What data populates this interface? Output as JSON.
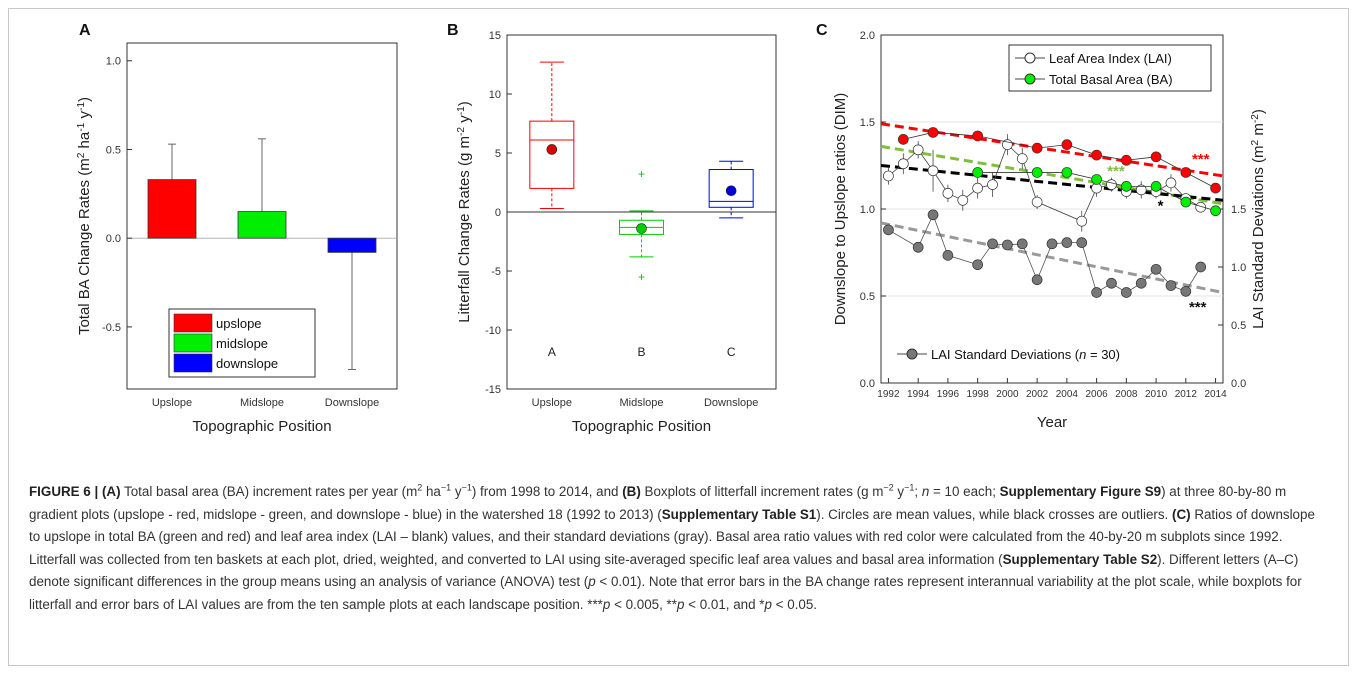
{
  "panels": {
    "A": {
      "letter": "A"
    },
    "B": {
      "letter": "B"
    },
    "C": {
      "letter": "C"
    }
  },
  "chart_data": [
    {
      "type": "bar",
      "panel": "A",
      "ylabel_main": "Total BA Change Rates (m",
      "ylabel_unit_a": "2",
      "ylabel_mid": " ha",
      "ylabel_unit_b": "-1",
      "ylabel_mid2": " y",
      "ylabel_unit_c": "-1",
      "ylabel_end": ")",
      "xlabel": "Topographic Position",
      "categories": [
        "Upslope",
        "Midslope",
        "Downslope"
      ],
      "values": [
        0.33,
        0.15,
        -0.08
      ],
      "error_bars": [
        0.53,
        0.56,
        -0.74
      ],
      "colors": [
        "#ff0000",
        "#00ee00",
        "#0000ff"
      ],
      "ylim": [
        -0.85,
        1.1
      ],
      "yticks": [
        -0.5,
        0.0,
        0.5,
        1.0
      ],
      "ytick_labels": [
        "-0.5",
        "0.0",
        "0.5",
        "1.0"
      ],
      "legend": [
        "upslope",
        "midslope",
        "downslope"
      ],
      "legend_position": "bottom-left"
    },
    {
      "type": "box",
      "panel": "B",
      "ylabel_main": "Litterfall Change Rates (g m",
      "ylabel_unit_a": "-2",
      "ylabel_mid": " y",
      "ylabel_unit_b": "-1",
      "ylabel_end": ")",
      "xlabel": "Topographic Position",
      "categories": [
        "Upslope",
        "Midslope",
        "Downslope"
      ],
      "group_letters": [
        "A",
        "B",
        "C"
      ],
      "colors": [
        "#ff0000",
        "#00cc00",
        "#0000ff"
      ],
      "boxes": [
        {
          "whisker_low": 0.3,
          "q1": 2.0,
          "median": 6.1,
          "q3": 7.7,
          "whisker_high": 12.7,
          "mean": 5.3,
          "outliers": []
        },
        {
          "whisker_low": -3.8,
          "q1": -1.9,
          "median": -1.3,
          "q3": -0.7,
          "whisker_high": 0.1,
          "mean": -1.4,
          "outliers": [
            3.2,
            -5.5
          ]
        },
        {
          "whisker_low": -0.5,
          "q1": 0.4,
          "median": 0.9,
          "q3": 3.6,
          "whisker_high": 4.3,
          "mean": 1.8,
          "outliers": []
        }
      ],
      "ylim": [
        -15,
        15
      ],
      "yticks": [
        -15,
        -10,
        -5,
        0,
        5,
        10,
        15
      ],
      "ytick_labels": [
        "-15",
        "-10",
        "-5",
        "0",
        "5",
        "10",
        "15"
      ]
    },
    {
      "type": "line",
      "panel": "C",
      "ylabel_left": "Downslope to Upslope ratios (DIM)",
      "ylabel_right_main": "LAI Standard Deviations (m",
      "ylabel_right_unit_a": "2",
      "ylabel_right_mid": " m",
      "ylabel_right_unit_b": "-2",
      "ylabel_right_end": ")",
      "xlabel": "Year",
      "xlim": [
        1991.5,
        2014.5
      ],
      "xticks": [
        1992,
        1994,
        1996,
        1998,
        2000,
        2002,
        2004,
        2006,
        2008,
        2010,
        2012,
        2014
      ],
      "xtick_labels": [
        "1992",
        "1994",
        "1996",
        "1998",
        "2000",
        "2002",
        "2004",
        "2006",
        "2008",
        "2010",
        "2012",
        "2014"
      ],
      "ylim_left": [
        0.0,
        2.0
      ],
      "yticks_left": [
        0.0,
        0.5,
        1.0,
        1.5,
        2.0
      ],
      "ytick_labels_left": [
        "0.0",
        "0.5",
        "1.0",
        "1.5",
        "2.0"
      ],
      "ylim_right": [
        0.0,
        3.0
      ],
      "yticks_right": [
        0.0,
        0.5,
        1.0,
        1.5
      ],
      "ytick_labels_right": [
        "0.0",
        "0.5",
        "1.0",
        "1.5"
      ],
      "legend_top": [
        "Leaf Area Index (LAI)",
        "Total Basal Area (BA)"
      ],
      "legend_bottom_pre": "LAI Standard Deviations (",
      "legend_bottom_n": "n",
      "legend_bottom_post": " = 30)",
      "series": [
        {
          "name": "Leaf Area Index (LAI)",
          "color": "#ffffff",
          "x": [
            1992,
            1993,
            1994,
            1995,
            1996,
            1997,
            1998,
            1999,
            2000,
            2001,
            2002,
            2005,
            2006,
            2007,
            2008,
            2009,
            2010,
            2011,
            2012,
            2013
          ],
          "y": [
            1.19,
            1.26,
            1.34,
            1.22,
            1.09,
            1.05,
            1.12,
            1.14,
            1.37,
            1.29,
            1.04,
            0.93,
            1.12,
            1.14,
            1.1,
            1.11,
            1.1,
            1.15,
            1.06,
            1.01
          ],
          "err": [
            0.05,
            0.06,
            0.05,
            0.12,
            0.05,
            0.06,
            0.06,
            0.07,
            0.06,
            0.06,
            0.04,
            0.06,
            0.05,
            0.04,
            0.04,
            0.05,
            0.04,
            0.05,
            0.03,
            0.03
          ]
        },
        {
          "name": "Total Basal Area (BA) - red",
          "color": "#ff0000",
          "x": [
            1993,
            1995,
            1998,
            2002,
            2004,
            2006,
            2008,
            2010,
            2012,
            2014
          ],
          "y": [
            1.4,
            1.44,
            1.42,
            1.35,
            1.37,
            1.31,
            1.28,
            1.3,
            1.21,
            1.12
          ]
        },
        {
          "name": "Total Basal Area (BA)",
          "color": "#00ee00",
          "x": [
            1998,
            2002,
            2004,
            2006,
            2008,
            2010,
            2012,
            2014
          ],
          "y": [
            1.21,
            1.21,
            1.21,
            1.17,
            1.13,
            1.13,
            1.04,
            0.99
          ]
        },
        {
          "name": "LAI Standard Deviations",
          "color": "#777777",
          "axis": "right",
          "x": [
            1992,
            1994,
            1995,
            1996,
            1998,
            1999,
            2000,
            2001,
            2002,
            2003,
            2004,
            2005,
            2006,
            2007,
            2008,
            2009,
            2010,
            2011,
            2012,
            2013
          ],
          "y": [
            1.32,
            1.17,
            1.45,
            1.1,
            1.02,
            1.2,
            1.19,
            1.2,
            0.89,
            1.2,
            1.21,
            1.21,
            0.78,
            0.86,
            0.78,
            0.86,
            0.98,
            0.84,
            0.79,
            1.0
          ]
        }
      ],
      "trendlines": [
        {
          "color": "#ff0000",
          "x": [
            1991.5,
            2014.5
          ],
          "y": [
            1.49,
            1.19
          ],
          "label": "***"
        },
        {
          "color": "#7fbf3f",
          "x": [
            1991.5,
            2014.5
          ],
          "y": [
            1.36,
            1.03
          ],
          "label": "***"
        },
        {
          "color": "#000000",
          "x": [
            1991.5,
            2014.5
          ],
          "y": [
            1.25,
            1.05
          ],
          "label": "*"
        },
        {
          "color": "#999999",
          "axis": "right",
          "x": [
            1991.5,
            2014.5
          ],
          "y": [
            1.38,
            0.78
          ],
          "label": "***"
        }
      ]
    }
  ],
  "caption": {
    "figure_label": "FIGURE 6 | ",
    "A_tag": "(A)",
    "t1": " Total basal area (BA) increment rates per year (m",
    "s1": "2",
    "t2": " ha",
    "s2": "−1",
    "t3": " y",
    "s3": "−1",
    "t4": ") from 1998 to 2014, and ",
    "B_tag": "(B)",
    "t5": " Boxplots of litterfall increment rates (g m",
    "s4": "−2",
    "t6": " y",
    "s5": "−1",
    "t7": "; ",
    "n_italic": "n",
    "t8": " = 10 each; ",
    "supp_fig": "Supplementary Figure S9",
    "t9": ") at three 80-by-80 m gradient plots (upslope - red, midslope - green, and downslope - blue) in the watershed 18 (1992 to 2013) (",
    "supp_t1": "Supplementary Table S1",
    "t10": "). Circles are mean values, while black crosses are outliers. ",
    "C_tag": "(C)",
    "t11": " Ratios of downslope to upslope in total BA (green and red) and leaf area index (LAI – blank) values, and their standard deviations (gray). Basal area ratio values with red color were calculated from the 40-by-20 m subplots since 1992. Litterfall was collected from ten baskets at each plot, dried, weighted, and converted to LAI using site-averaged specific leaf area values and basal area information (",
    "supp_t2": "Supplementary Table S2",
    "t12": "). Different letters (A–C) denote significant differences in the group means using an analysis of variance (ANOVA) test (",
    "p1": "p",
    "t13": " < 0.01). Note that error bars in the BA change rates represent interannual variability at the plot scale, while boxplots for litterfall and error bars of LAI values are from the ten sample plots at each landscape position. ***",
    "p2": "p",
    "t14": " < 0.005, **",
    "p3": "p",
    "t15": " < 0.01, and *",
    "p4": "p",
    "t16": " < 0.05."
  }
}
